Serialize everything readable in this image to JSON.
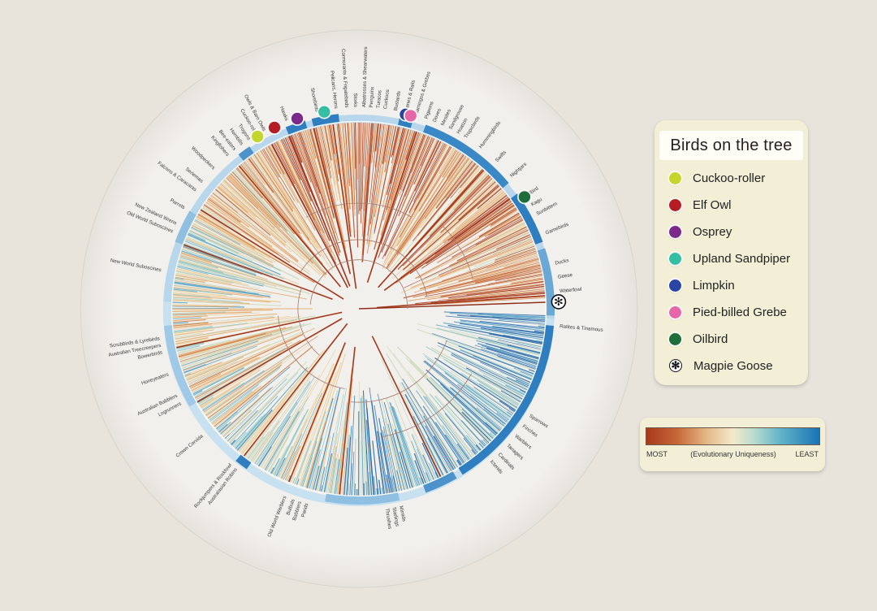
{
  "legend": {
    "title": "Birds on the tree",
    "items": [
      {
        "label": "Cuckoo-roller",
        "color": "#c4d62b",
        "icon": "dot-icon"
      },
      {
        "label": "Elf Owl",
        "color": "#b51d24",
        "icon": "dot-icon"
      },
      {
        "label": "Osprey",
        "color": "#7b2a8c",
        "icon": "dot-icon"
      },
      {
        "label": "Upland Sandpiper",
        "color": "#35bfa2",
        "icon": "dot-icon"
      },
      {
        "label": "Limpkin",
        "color": "#2b45a4",
        "icon": "dot-icon"
      },
      {
        "label": "Pied-billed Grebe",
        "color": "#e667a8",
        "icon": "dot-icon"
      },
      {
        "label": "Oilbird",
        "color": "#1d6e3a",
        "icon": "dot-icon"
      },
      {
        "label": "Magpie Goose",
        "color": "#ffffff",
        "icon": "asterisk-icon"
      }
    ]
  },
  "scale": {
    "most": "MOST",
    "middle": "(Evolutionary Uniqueness)",
    "least": "LEAST",
    "colors": [
      "#a8391b",
      "#e4b886",
      "#f3e9cc",
      "#5fb3c8",
      "#1a73b5"
    ]
  },
  "clades": [
    {
      "label": "Ratites & Tinamous",
      "angle": 5
    },
    {
      "label": "Waterfowl",
      "angle": -5
    },
    {
      "label": "Geese",
      "angle": -9
    },
    {
      "label": "Ducks",
      "angle": -13
    },
    {
      "label": "Gamebirds",
      "angle": -22
    },
    {
      "label": "Sunbittern",
      "angle": -28
    },
    {
      "label": "Kagu",
      "angle": -31
    },
    {
      "label": "Oilbird",
      "angle": -34
    },
    {
      "label": "Nightjars",
      "angle": -41
    },
    {
      "label": "Swifts",
      "angle": -47
    },
    {
      "label": "Hummingbirds",
      "angle": -53
    },
    {
      "label": "Tropicbirds",
      "angle": -58
    },
    {
      "label": "Hoatzin",
      "angle": -60.5
    },
    {
      "label": "Sandgrouse",
      "angle": -63
    },
    {
      "label": "Mesites",
      "angle": -65.5
    },
    {
      "label": "Doves",
      "angle": -68
    },
    {
      "label": "Pigeons",
      "angle": -70.5
    },
    {
      "label": "Flamingos & Grebes",
      "angle": -73.5
    },
    {
      "label": "Cranes & Rails",
      "angle": -76.5
    },
    {
      "label": "Bustards",
      "angle": -79.5
    },
    {
      "label": "Cuckoos",
      "angle": -82.5
    },
    {
      "label": "Turacos",
      "angle": -84.5
    },
    {
      "label": "Penguins",
      "angle": -86.5
    },
    {
      "label": "Albatrosses & Shearwaters",
      "angle": -88.5
    },
    {
      "label": "Storks",
      "angle": -91
    },
    {
      "label": "Cormorants & Frigatebirds",
      "angle": -93.5
    },
    {
      "label": "Pelicans, Herons",
      "angle": -96.5
    },
    {
      "label": "Shorebirds",
      "angle": -102
    },
    {
      "label": "Hawks",
      "angle": -111
    },
    {
      "label": "Owls & Barn Owls",
      "angle": -118
    },
    {
      "label": "Cuckoo-roller",
      "angle": -120.5
    },
    {
      "label": "Trogons",
      "angle": -123
    },
    {
      "label": "Hornbills",
      "angle": -125.5
    },
    {
      "label": "Bee-eaters",
      "angle": -128
    },
    {
      "label": "Kingfishers",
      "angle": -130.5
    },
    {
      "label": "Woodpeckers",
      "angle": -136
    },
    {
      "label": "Seriemas",
      "angle": -141
    },
    {
      "label": "Falcons & Caracaras",
      "angle": -144
    },
    {
      "label": "Parrots",
      "angle": -150
    },
    {
      "label": "New Zealand Wrens",
      "angle": -155
    },
    {
      "label": "Old World Suboscines",
      "angle": -157.5
    },
    {
      "label": "New World Suboscines",
      "angle": -169
    },
    {
      "label": "Scrubbirds & Lyrebirds",
      "angle": 171.5
    },
    {
      "label": "Australian Treecreepers",
      "angle": 169.5
    },
    {
      "label": "Bowerbirds",
      "angle": 167.5
    },
    {
      "label": "Honeyeaters",
      "angle": 161
    },
    {
      "label": "Australian Babblers",
      "angle": 154.5
    },
    {
      "label": "Logrunners",
      "angle": 152
    },
    {
      "label": "Crown Corvida",
      "angle": 141
    },
    {
      "label": "Rockjumpers & Rockfowl",
      "angle": 129.5
    },
    {
      "label": "Australasian Robins",
      "angle": 127.5
    },
    {
      "label": "Old World Warblers",
      "angle": 111.5
    },
    {
      "label": "Bulbuls",
      "angle": 109
    },
    {
      "label": "Babblers",
      "angle": 107
    },
    {
      "label": "Parids",
      "angle": 105
    },
    {
      "label": "Thrushes",
      "angle": 82
    },
    {
      "label": "Starlings",
      "angle": 80
    },
    {
      "label": "Mimids",
      "angle": 78
    },
    {
      "label": "Icterids",
      "angle": 49
    },
    {
      "label": "Cardinals",
      "angle": 46
    },
    {
      "label": "Tanagers",
      "angle": 42.5
    },
    {
      "label": "Warblers",
      "angle": 39
    },
    {
      "label": "Finches",
      "angle": 35.5
    },
    {
      "label": "Sparrows",
      "angle": 32
    }
  ],
  "highlight_birds": [
    {
      "name": "Cuckoo-roller",
      "angle": -120.5,
      "color": "#c4d62b"
    },
    {
      "name": "Elf Owl",
      "angle": -115,
      "color": "#b51d24"
    },
    {
      "name": "Osprey",
      "angle": -108,
      "color": "#7b2a8c"
    },
    {
      "name": "Upland Sandpiper",
      "angle": -100,
      "color": "#35bfa2"
    },
    {
      "name": "Limpkin",
      "angle": -76.5,
      "color": "#2b45a4"
    },
    {
      "name": "Pied-billed Grebe",
      "angle": -75,
      "color": "#e667a8"
    },
    {
      "name": "Oilbird",
      "angle": -34,
      "color": "#1d6e3a"
    },
    {
      "name": "Magpie Goose",
      "angle": -2,
      "color": "#ffffff"
    }
  ]
}
